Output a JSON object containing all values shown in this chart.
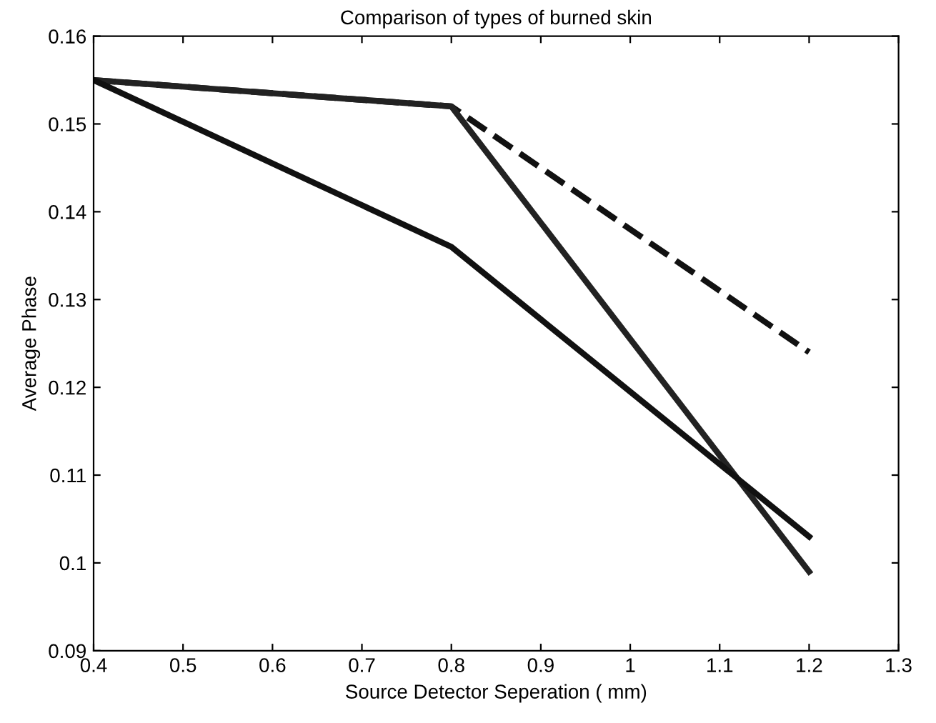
{
  "chart_data": {
    "type": "line",
    "title": "Comparison of types of burned skin",
    "xlabel": "Source Detector Seperation ( mm)",
    "ylabel": "Average Phase",
    "x": [
      0.4,
      0.8,
      1.2
    ],
    "series": [
      {
        "color": "#111111",
        "values": [
          0.155,
          0.152,
          0.124
        ],
        "line_style": "dashed"
      },
      {
        "color": "#222222",
        "values": [
          0.155,
          0.152,
          0.099
        ],
        "line_style": "solid"
      },
      {
        "color": "#111111",
        "values": [
          0.155,
          0.136,
          0.103
        ],
        "line_style": "solid"
      }
    ],
    "xlim": [
      0.4,
      1.3
    ],
    "xticks": [
      0.4,
      0.5,
      0.6,
      0.7,
      0.8,
      0.9,
      1,
      1.1,
      1.2,
      1.3
    ],
    "ylim": [
      0.09,
      0.16
    ],
    "yticks": [
      0.09,
      0.1,
      0.11,
      0.12,
      0.13,
      0.14,
      0.15,
      0.16
    ],
    "grid": false,
    "legend": false,
    "marker": "none"
  }
}
